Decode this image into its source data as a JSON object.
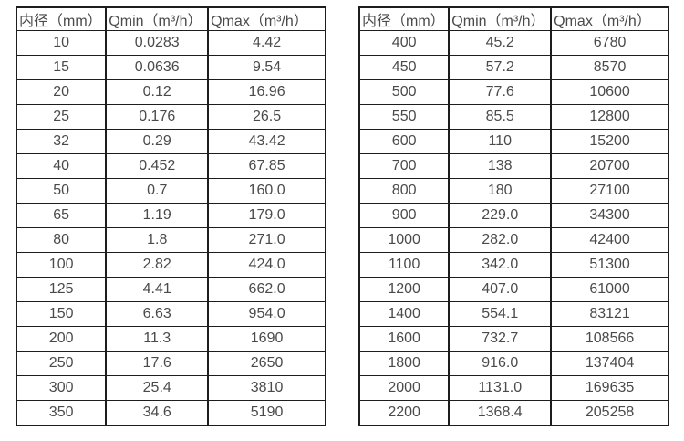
{
  "colors": {
    "background": "#ffffff",
    "border": "#1d1d1d",
    "text": "#4a4a4a"
  },
  "tables": [
    {
      "name": "flow-spec-table-small-diameters",
      "headers": [
        "内径（mm）",
        "Qmin（m³/h）",
        "Qmax（m³/h）"
      ],
      "rows": [
        [
          "10",
          "0.0283",
          "4.42"
        ],
        [
          "15",
          "0.0636",
          "9.54"
        ],
        [
          "20",
          "0.12",
          "16.96"
        ],
        [
          "25",
          "0.176",
          "26.5"
        ],
        [
          "32",
          "0.29",
          "43.42"
        ],
        [
          "40",
          "0.452",
          "67.85"
        ],
        [
          "50",
          "0.7",
          "160.0"
        ],
        [
          "65",
          "1.19",
          "179.0"
        ],
        [
          "80",
          "1.8",
          "271.0"
        ],
        [
          "100",
          "2.82",
          "424.0"
        ],
        [
          "125",
          "4.41",
          "662.0"
        ],
        [
          "150",
          "6.63",
          "954.0"
        ],
        [
          "200",
          "11.3",
          "1690"
        ],
        [
          "250",
          "17.6",
          "2650"
        ],
        [
          "300",
          "25.4",
          "3810"
        ],
        [
          "350",
          "34.6",
          "5190"
        ]
      ]
    },
    {
      "name": "flow-spec-table-large-diameters",
      "headers": [
        "内径（mm）",
        "Qmin（m³/h）",
        "Qmax（m³/h）"
      ],
      "rows": [
        [
          "400",
          "45.2",
          "6780"
        ],
        [
          "450",
          "57.2",
          "8570"
        ],
        [
          "500",
          "77.6",
          "10600"
        ],
        [
          "550",
          "85.5",
          "12800"
        ],
        [
          "600",
          "110",
          "15200"
        ],
        [
          "700",
          "138",
          "20700"
        ],
        [
          "800",
          "180",
          "27100"
        ],
        [
          "900",
          "229.0",
          "34300"
        ],
        [
          "1000",
          "282.0",
          "42400"
        ],
        [
          "1100",
          "342.0",
          "51300"
        ],
        [
          "1200",
          "407.0",
          "61000"
        ],
        [
          "1400",
          "554.1",
          "83121"
        ],
        [
          "1600",
          "732.7",
          "108566"
        ],
        [
          "1800",
          "916.0",
          "137404"
        ],
        [
          "2000",
          "1131.0",
          "169635"
        ],
        [
          "2200",
          "1368.4",
          "205258"
        ]
      ]
    }
  ]
}
